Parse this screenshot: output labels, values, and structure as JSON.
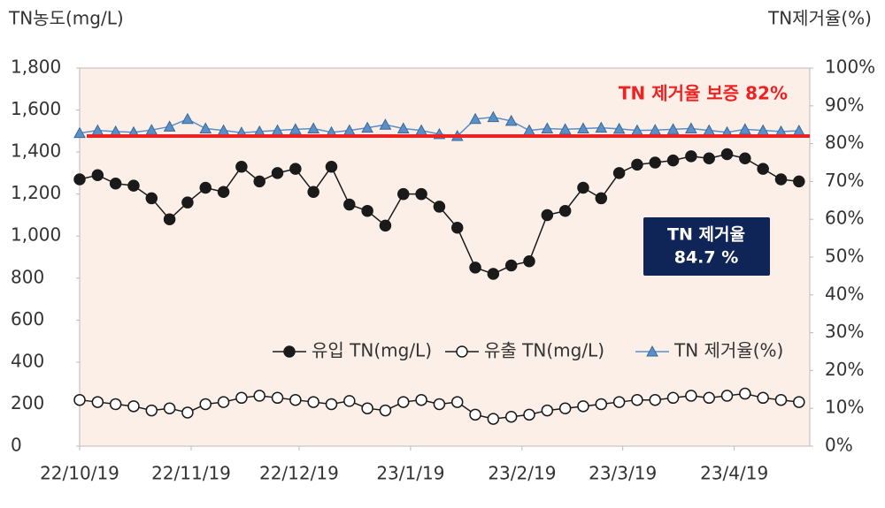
{
  "chart_data": {
    "type": "line",
    "y_axis_title": "TN농도(mg/L)",
    "y2_axis_title": "TN제거율(%)",
    "x": [
      "2022-10-19",
      "2022-10-24",
      "2022-10-29",
      "2022-11-03",
      "2022-11-08",
      "2022-11-13",
      "2022-11-18",
      "2022-11-23",
      "2022-11-28",
      "2022-12-03",
      "2022-12-08",
      "2022-12-13",
      "2022-12-18",
      "2022-12-23",
      "2022-12-28",
      "2023-01-02",
      "2023-01-07",
      "2023-01-12",
      "2023-01-17",
      "2023-01-22",
      "2023-01-27",
      "2023-02-01",
      "2023-02-06",
      "2023-02-11",
      "2023-02-16",
      "2023-02-21",
      "2023-02-26",
      "2023-03-03",
      "2023-03-08",
      "2023-03-13",
      "2023-03-18",
      "2023-03-23",
      "2023-03-28",
      "2023-04-02",
      "2023-04-07",
      "2023-04-12",
      "2023-04-17",
      "2023-04-22",
      "2023-04-27",
      "2023-05-02",
      "2023-05-07"
    ],
    "series": [
      {
        "name": "유입 TN(mg/L)",
        "color": "#1a1a1a",
        "marker": "filled-circle",
        "values": [
          1270,
          1290,
          1250,
          1240,
          1180,
          1080,
          1160,
          1230,
          1210,
          1330,
          1260,
          1300,
          1320,
          1210,
          1330,
          1150,
          1120,
          1050,
          1200,
          1200,
          1140,
          1040,
          850,
          820,
          860,
          880,
          1100,
          1120,
          1230,
          1180,
          1300,
          1340,
          1350,
          1360,
          1380,
          1370,
          1390,
          1370,
          1320,
          1270,
          1260
        ]
      },
      {
        "name": "유출 TN(mg/L)",
        "color": "#1a1a1a",
        "marker": "open-circle",
        "values": [
          220,
          210,
          200,
          190,
          170,
          180,
          160,
          200,
          210,
          230,
          240,
          230,
          220,
          210,
          200,
          215,
          180,
          170,
          210,
          220,
          200,
          210,
          150,
          130,
          140,
          150,
          170,
          180,
          190,
          200,
          210,
          220,
          220,
          230,
          240,
          230,
          240,
          250,
          230,
          220,
          210
        ]
      },
      {
        "name": "TN 제거율(%)",
        "color": "#5b8fc7",
        "marker": "triangle",
        "axis": "y2",
        "values": [
          82.8,
          83.5,
          83.2,
          83.0,
          83.6,
          84.5,
          86.5,
          84.0,
          83.5,
          82.9,
          83.2,
          83.5,
          83.8,
          84.0,
          83.0,
          83.5,
          84.2,
          85.0,
          84.0,
          83.5,
          82.5,
          82.0,
          86.5,
          87.0,
          86.0,
          83.5,
          84.0,
          83.8,
          84.0,
          84.2,
          83.9,
          83.5,
          83.6,
          83.8,
          84.0,
          83.5,
          83.0,
          83.8,
          83.5,
          83.2,
          83.4
        ]
      }
    ],
    "xlim": [
      "2022-10-19",
      "2023-05-10"
    ],
    "xticks": [
      {
        "value": "2022-10-19",
        "label": "22/10/19"
      },
      {
        "value": "2022-11-19",
        "label": "22/11/19"
      },
      {
        "value": "2022-12-19",
        "label": "22/12/19"
      },
      {
        "value": "2023-01-19",
        "label": "23/1/19"
      },
      {
        "value": "2023-02-19",
        "label": "23/2/19"
      },
      {
        "value": "2023-03-19",
        "label": "23/3/19"
      },
      {
        "value": "2023-04-19",
        "label": "23/4/19"
      }
    ],
    "ylim": [
      0,
      1800
    ],
    "yticks": [
      0,
      200,
      400,
      600,
      800,
      {
        "value": 1000,
        "label": "1,000"
      },
      {
        "value": 1200,
        "label": "1,200"
      },
      {
        "value": 1400,
        "label": "1,400"
      },
      {
        "value": 1600,
        "label": "1,600"
      },
      {
        "value": 1800,
        "label": "1,800"
      }
    ],
    "y2lim": [
      0,
      100
    ],
    "y2ticks": [
      {
        "value": 0,
        "label": "0%"
      },
      {
        "value": 10,
        "label": "10%"
      },
      {
        "value": 20,
        "label": "20%"
      },
      {
        "value": 30,
        "label": "30%"
      },
      {
        "value": 40,
        "label": "40%"
      },
      {
        "value": 50,
        "label": "50%"
      },
      {
        "value": 60,
        "label": "60%"
      },
      {
        "value": 70,
        "label": "70%"
      },
      {
        "value": 80,
        "label": "80%"
      },
      {
        "value": 90,
        "label": "90%"
      },
      {
        "value": 100,
        "label": "100%"
      }
    ],
    "grid": false,
    "reference_line": {
      "value": 82,
      "axis": "y2",
      "color": "#ee2222",
      "label": "TN 제거율 보증 82%"
    },
    "annotation_box": {
      "lines": [
        "TN 제거율",
        "84.7 %"
      ],
      "color": "#0f2557"
    }
  }
}
